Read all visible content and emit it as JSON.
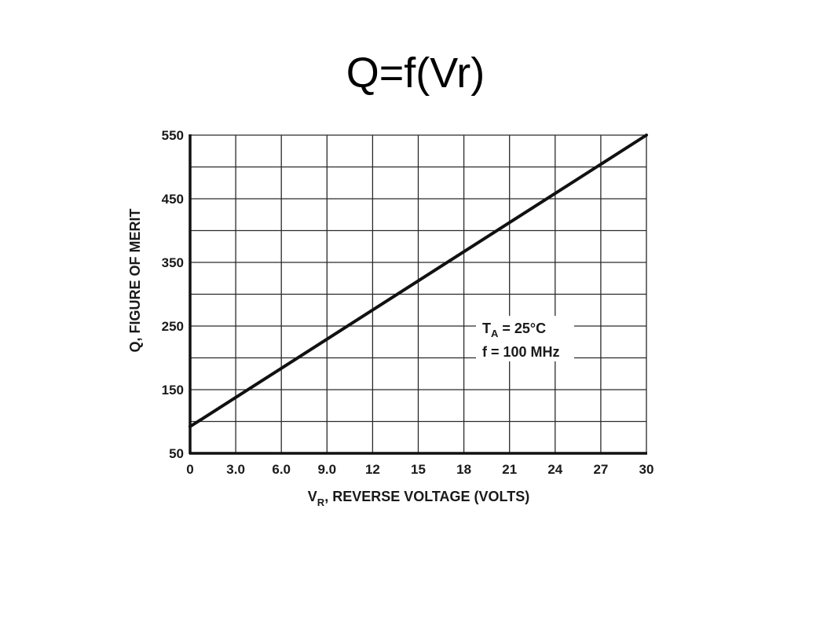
{
  "slide": {
    "title": "Q=f(Vr)"
  },
  "chart_data": {
    "type": "line",
    "xlabel_main": "V",
    "xlabel_sub": "R",
    "xlabel_rest": ", REVERSE VOLTAGE (VOLTS)",
    "ylabel": "Q, FIGURE OF MERIT",
    "xlim": [
      0,
      30
    ],
    "ylim": [
      50,
      550
    ],
    "x_ticks": [
      0,
      3,
      6,
      9,
      12,
      15,
      18,
      21,
      24,
      27,
      30
    ],
    "x_tick_labels": [
      "0",
      "3.0",
      "6.0",
      "9.0",
      "12",
      "15",
      "18",
      "21",
      "24",
      "27",
      "30"
    ],
    "y_ticks": [
      50,
      150,
      250,
      350,
      450,
      550
    ],
    "y_tick_labels": [
      "50",
      "150",
      "250",
      "350",
      "450",
      "550"
    ],
    "grid": true,
    "series": [
      {
        "x": [
          0,
          30
        ],
        "y": [
          92,
          550
        ],
        "color": "#111111"
      }
    ],
    "annotation": {
      "line1_main": "T",
      "line1_sub": "A",
      "line1_rest": " = 25°C",
      "line2": "f = 100 MHz"
    }
  }
}
